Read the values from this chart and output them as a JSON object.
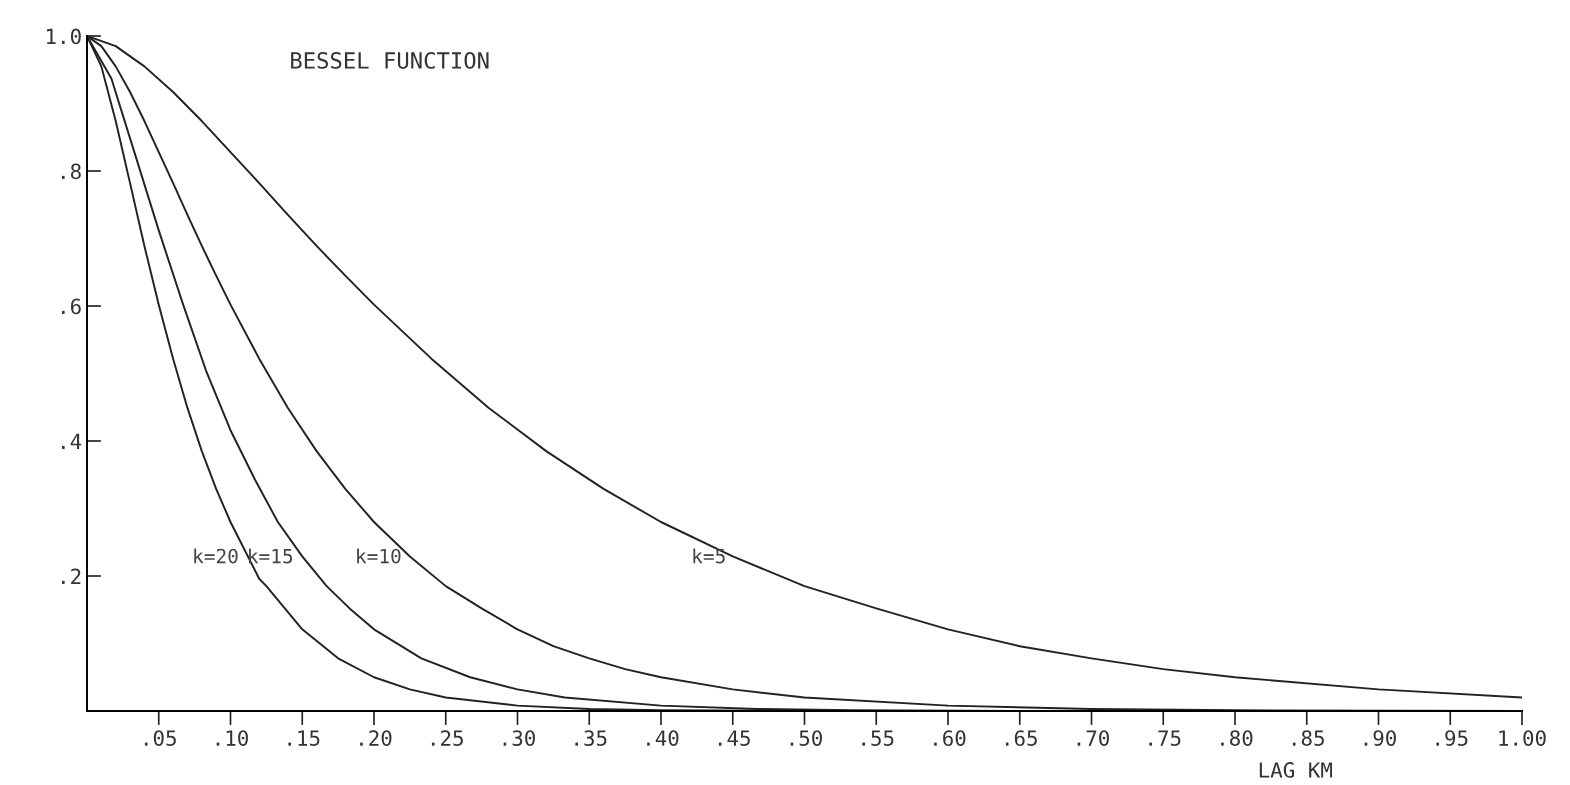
{
  "chart_data": {
    "type": "line",
    "title": "BESSEL FUNCTION",
    "xlabel": "LAG KM",
    "xlim": [
      0,
      1.0
    ],
    "ylim": [
      0,
      1.0
    ],
    "xticks": [
      {
        "value": 0.05,
        "label": ".05"
      },
      {
        "value": 0.1,
        "label": ".10"
      },
      {
        "value": 0.15,
        "label": ".15"
      },
      {
        "value": 0.2,
        "label": ".20"
      },
      {
        "value": 0.25,
        "label": ".25"
      },
      {
        "value": 0.3,
        "label": ".30"
      },
      {
        "value": 0.35,
        "label": ".35"
      },
      {
        "value": 0.4,
        "label": ".40"
      },
      {
        "value": 0.45,
        "label": ".45"
      },
      {
        "value": 0.5,
        "label": ".50"
      },
      {
        "value": 0.55,
        "label": ".55"
      },
      {
        "value": 0.6,
        "label": ".60"
      },
      {
        "value": 0.65,
        "label": ".65"
      },
      {
        "value": 0.7,
        "label": ".70"
      },
      {
        "value": 0.75,
        "label": ".75"
      },
      {
        "value": 0.8,
        "label": ".80"
      },
      {
        "value": 0.85,
        "label": ".85"
      },
      {
        "value": 0.9,
        "label": ".90"
      },
      {
        "value": 0.95,
        "label": ".95"
      },
      {
        "value": 1.0,
        "label": "1.00"
      }
    ],
    "yticks": [
      {
        "value": 0.2,
        "label": ".2"
      },
      {
        "value": 0.4,
        "label": ".4"
      },
      {
        "value": 0.6,
        "label": ".6"
      },
      {
        "value": 0.8,
        "label": ".8"
      },
      {
        "value": 1.0,
        "label": "1.0"
      }
    ],
    "grid": false,
    "legend": false,
    "marker": "none",
    "line_style": "solid",
    "series": [
      {
        "name": "k=5",
        "color": "#222222",
        "x": [
          0,
          0.02,
          0.04,
          0.06,
          0.08,
          0.1,
          0.12,
          0.14,
          0.16,
          0.18,
          0.2,
          0.24,
          0.28,
          0.32,
          0.36,
          0.4,
          0.45,
          0.5,
          0.55,
          0.6,
          0.65,
          0.7,
          0.75,
          0.8,
          0.9,
          1.0
        ],
        "values": [
          1.0,
          0.985,
          0.955,
          0.917,
          0.874,
          0.828,
          0.782,
          0.735,
          0.689,
          0.645,
          0.602,
          0.522,
          0.449,
          0.385,
          0.329,
          0.28,
          0.229,
          0.185,
          0.152,
          0.121,
          0.096,
          0.078,
          0.062,
          0.05,
          0.032,
          0.02
        ]
      },
      {
        "name": "k=10",
        "color": "#222222",
        "x": [
          0,
          0.01,
          0.02,
          0.03,
          0.04,
          0.05,
          0.06,
          0.07,
          0.08,
          0.09,
          0.1,
          0.12,
          0.14,
          0.16,
          0.18,
          0.2,
          0.225,
          0.25,
          0.275,
          0.3,
          0.325,
          0.35,
          0.375,
          0.4,
          0.45,
          0.5,
          0.6,
          0.7,
          0.8,
          1.0
        ],
        "values": [
          1.0,
          0.985,
          0.955,
          0.917,
          0.874,
          0.828,
          0.782,
          0.735,
          0.689,
          0.645,
          0.602,
          0.522,
          0.449,
          0.385,
          0.329,
          0.28,
          0.229,
          0.185,
          0.152,
          0.121,
          0.096,
          0.078,
          0.062,
          0.05,
          0.032,
          0.02,
          0.008,
          0.003,
          0.001,
          0.0
        ]
      },
      {
        "name": "k=15",
        "color": "#222222",
        "x": [
          0,
          0.017,
          0.033,
          0.05,
          0.067,
          0.083,
          0.1,
          0.117,
          0.133,
          0.15,
          0.167,
          0.183,
          0.2,
          0.233,
          0.267,
          0.3,
          0.333,
          0.4,
          0.467,
          0.533,
          0.667
        ],
        "values": [
          1.0,
          0.937,
          0.828,
          0.712,
          0.602,
          0.504,
          0.416,
          0.343,
          0.28,
          0.229,
          0.185,
          0.152,
          0.121,
          0.078,
          0.05,
          0.032,
          0.02,
          0.008,
          0.003,
          0.001,
          0.0
        ]
      },
      {
        "name": "k=20",
        "color": "#222222",
        "x": [
          0,
          0.01,
          0.02,
          0.03,
          0.04,
          0.05,
          0.06,
          0.07,
          0.08,
          0.09,
          0.1,
          0.12,
          0.125,
          0.15,
          0.175,
          0.2,
          0.225,
          0.25,
          0.3,
          0.35,
          0.4,
          0.5
        ],
        "values": [
          1.0,
          0.955,
          0.874,
          0.782,
          0.689,
          0.602,
          0.522,
          0.449,
          0.385,
          0.329,
          0.28,
          0.196,
          0.185,
          0.121,
          0.078,
          0.05,
          0.032,
          0.02,
          0.008,
          0.003,
          0.001,
          0.0
        ]
      }
    ]
  }
}
